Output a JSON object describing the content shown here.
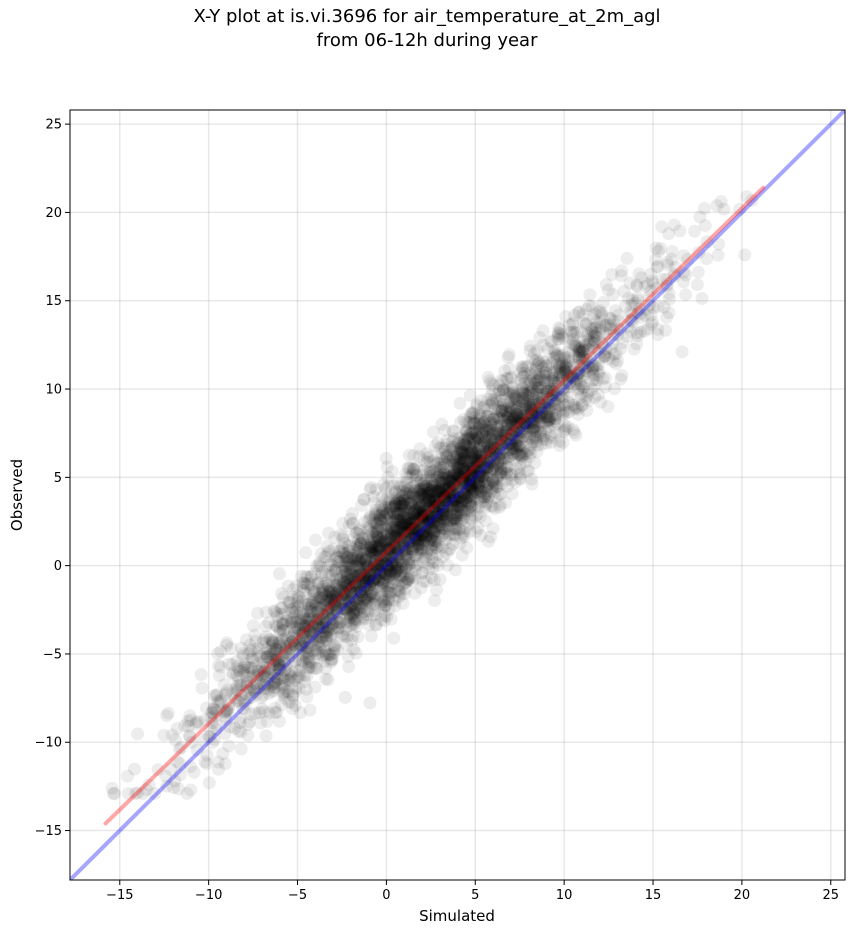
{
  "chart_data": {
    "type": "scatter",
    "title": "X-Y plot at is.vi.3696 for air_temperature_at_2m_agl",
    "subtitle": "from 06-12h during year",
    "xlabel": "Simulated",
    "ylabel": "Observed",
    "xlim": [
      -17.8,
      25.8
    ],
    "ylim": [
      -17.8,
      25.8
    ],
    "xticks": [
      -15,
      -10,
      -5,
      0,
      5,
      10,
      15,
      20,
      25
    ],
    "yticks": [
      -15,
      -10,
      -5,
      0,
      5,
      10,
      15,
      20,
      25
    ],
    "tick_labels": [
      "−15",
      "−10",
      "−5",
      "0",
      "5",
      "10",
      "15",
      "20",
      "25"
    ],
    "grid": true,
    "point_color": "#000000",
    "point_alpha": 0.07,
    "lines": [
      {
        "style": "one-to-one",
        "color": "#0000ff",
        "alpha": 0.35,
        "x": [
          -17.8,
          25.8
        ],
        "y": [
          -17.8,
          25.8
        ]
      },
      {
        "style": "regression",
        "color": "#ff0000",
        "alpha": 0.35,
        "x": [
          -15.8,
          21.2
        ],
        "y": [
          -14.6,
          21.4
        ]
      }
    ],
    "scatter_summary": {
      "approx_points": 4000,
      "x_range": [
        -15.9,
        21.4
      ],
      "y_range": [
        -12.9,
        23.7
      ],
      "relation": "observed ≈ 0.97 × simulated + 0.8"
    }
  }
}
